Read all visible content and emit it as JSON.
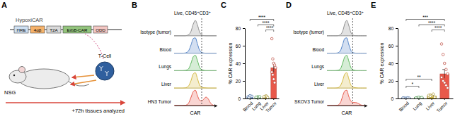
{
  "diagram": {
    "label": "A",
    "title": "HypoxiCAR",
    "construct": [
      "HRE",
      "4αβ",
      "T2A",
      "ErbB-CAR",
      "ODD"
    ],
    "cell": "T-Cell",
    "mouse": "NSG",
    "timeline": "+72h tissues analyzed"
  },
  "chart_data": [
    {
      "type": "ridgeline",
      "title": "B",
      "subtitle": "Live, CD45⁺CD3⁺",
      "xlabel": "CAR",
      "tick_labels": false,
      "x": [
        0,
        1,
        2,
        3,
        4,
        5,
        6,
        7,
        8,
        9,
        10,
        11,
        12,
        13,
        14,
        15,
        16,
        17,
        18,
        19,
        20
      ],
      "xlim": [
        0,
        20
      ],
      "ylim": [
        0,
        1
      ],
      "series": [
        {
          "name": "Isotype (tumor)",
          "color": "#8c8c8c",
          "values": [
            0,
            0,
            0,
            0,
            0,
            0,
            0.02,
            0.08,
            0.3,
            0.75,
            1,
            0.7,
            0.25,
            0.06,
            0.01,
            0,
            0,
            0,
            0,
            0,
            0
          ]
        },
        {
          "name": "Blood",
          "color": "#4f81c7",
          "values": [
            0,
            0,
            0,
            0,
            0,
            0.01,
            0.05,
            0.2,
            0.55,
            0.95,
            1,
            0.6,
            0.2,
            0.05,
            0.01,
            0,
            0,
            0,
            0,
            0,
            0
          ]
        },
        {
          "name": "Lungs",
          "color": "#5cb85c",
          "values": [
            0,
            0,
            0,
            0,
            0,
            0.01,
            0.04,
            0.15,
            0.5,
            0.9,
            1,
            0.65,
            0.22,
            0.06,
            0.02,
            0,
            0,
            0,
            0,
            0,
            0
          ]
        },
        {
          "name": "Liver",
          "color": "#d4b83a",
          "values": [
            0,
            0,
            0,
            0,
            0,
            0.01,
            0.05,
            0.18,
            0.5,
            0.92,
            1,
            0.62,
            0.2,
            0.06,
            0.02,
            0.01,
            0,
            0,
            0,
            0,
            0
          ]
        },
        {
          "name": "HN3 Tumor",
          "color": "#e8584a",
          "values": [
            0,
            0,
            0,
            0,
            0,
            0.01,
            0.05,
            0.2,
            0.55,
            0.9,
            1,
            0.65,
            0.35,
            0.3,
            0.42,
            0.55,
            0.45,
            0.2,
            0.05,
            0.01,
            0
          ]
        }
      ],
      "annotations": [
        {
          "x": 13,
          "line_style": "dashed"
        }
      ]
    },
    {
      "type": "bar",
      "title": "C",
      "ylabel": "% CAR expression",
      "categories": [
        "Blood",
        "Lung",
        "Liver",
        "Tumor"
      ],
      "values": [
        2,
        1.5,
        2,
        35
      ],
      "errors": [
        0.4,
        0.3,
        0.4,
        5.5
      ],
      "colors": [
        "#4f81c7",
        "#5cb85c",
        "#d4b83a",
        "#e8584a"
      ],
      "points": [
        [
          1,
          2,
          3,
          1.5,
          2.5,
          2,
          1,
          3
        ],
        [
          1,
          1.5,
          2,
          1,
          2,
          1.5
        ],
        [
          1.5,
          2,
          3,
          2.5,
          1,
          2
        ],
        [
          68,
          45,
          40,
          38,
          35,
          30,
          27,
          22,
          18
        ]
      ],
      "ylim": [
        0,
        80
      ],
      "yticks": [
        0,
        20,
        40,
        60,
        80
      ],
      "annotations": [
        {
          "text": "****",
          "from": 0,
          "to": 3,
          "y": 90
        },
        {
          "text": "****",
          "from": 1,
          "to": 3,
          "y": 84
        },
        {
          "text": "****",
          "from": 2,
          "to": 3,
          "y": 78
        }
      ]
    },
    {
      "type": "ridgeline",
      "title": "D",
      "subtitle": "Live, CD45⁺CD3⁺",
      "xlabel": "CAR",
      "tick_labels": false,
      "x": [
        0,
        1,
        2,
        3,
        4,
        5,
        6,
        7,
        8,
        9,
        10,
        11,
        12,
        13,
        14,
        15,
        16,
        17,
        18,
        19,
        20
      ],
      "xlim": [
        0,
        20
      ],
      "ylim": [
        0,
        1
      ],
      "series": [
        {
          "name": "Isotype (tumor)",
          "color": "#8c8c8c",
          "values": [
            0,
            0,
            0,
            0,
            0,
            0,
            0.02,
            0.09,
            0.32,
            0.78,
            1,
            0.68,
            0.24,
            0.06,
            0.01,
            0,
            0,
            0,
            0,
            0,
            0
          ]
        },
        {
          "name": "Blood",
          "color": "#4f81c7",
          "values": [
            0,
            0,
            0,
            0,
            0,
            0.01,
            0.05,
            0.22,
            0.6,
            0.96,
            1,
            0.58,
            0.2,
            0.05,
            0.01,
            0,
            0,
            0,
            0,
            0,
            0
          ]
        },
        {
          "name": "Lungs",
          "color": "#5cb85c",
          "values": [
            0,
            0,
            0,
            0,
            0,
            0.01,
            0.04,
            0.16,
            0.52,
            0.9,
            1,
            0.64,
            0.22,
            0.07,
            0.02,
            0,
            0,
            0,
            0,
            0,
            0
          ]
        },
        {
          "name": "Liver",
          "color": "#d4b83a",
          "values": [
            0,
            0,
            0,
            0,
            0,
            0.01,
            0.05,
            0.2,
            0.52,
            0.92,
            1,
            0.62,
            0.22,
            0.08,
            0.03,
            0.01,
            0,
            0,
            0,
            0,
            0
          ]
        },
        {
          "name": "SKOV3 Tumor",
          "color": "#e8584a",
          "values": [
            0,
            0,
            0,
            0,
            0,
            0.01,
            0.06,
            0.25,
            0.65,
            0.95,
            1,
            0.6,
            0.3,
            0.2,
            0.2,
            0.18,
            0.12,
            0.05,
            0.01,
            0,
            0
          ]
        }
      ],
      "annotations": [
        {
          "x": 13,
          "line_style": "dashed"
        }
      ]
    },
    {
      "type": "bar",
      "title": "E",
      "ylabel": "% CAR expression",
      "categories": [
        "Blood",
        "Lung",
        "Liver",
        "Tumor"
      ],
      "values": [
        0.5,
        1,
        3,
        28
      ],
      "errors": [
        0.2,
        0.3,
        0.5,
        5
      ],
      "colors": [
        "#4f81c7",
        "#5cb85c",
        "#d4b83a",
        "#e8584a"
      ],
      "points": [
        [
          0.3,
          0.5,
          0.2,
          0.8,
          0.4,
          0.6
        ],
        [
          0.5,
          1,
          1.5,
          0.8,
          1.2,
          0.6
        ],
        [
          2,
          4,
          3,
          5,
          1.5,
          3.5,
          2.5
        ],
        [
          62,
          50,
          40,
          33,
          28,
          24,
          20,
          18,
          15,
          12
        ]
      ],
      "ylim": [
        0,
        80
      ],
      "yticks": [
        0,
        20,
        40,
        60,
        80
      ],
      "annotations": [
        {
          "text": "***",
          "from": 0,
          "to": 3,
          "y": 90
        },
        {
          "text": "****",
          "from": 1,
          "to": 3,
          "y": 84
        },
        {
          "text": "****",
          "from": 2,
          "to": 3,
          "y": 78
        },
        {
          "text": "**",
          "from": 0,
          "to": 2,
          "y": 22
        },
        {
          "text": "*",
          "from": 0,
          "to": 1,
          "y": 14
        }
      ]
    }
  ]
}
